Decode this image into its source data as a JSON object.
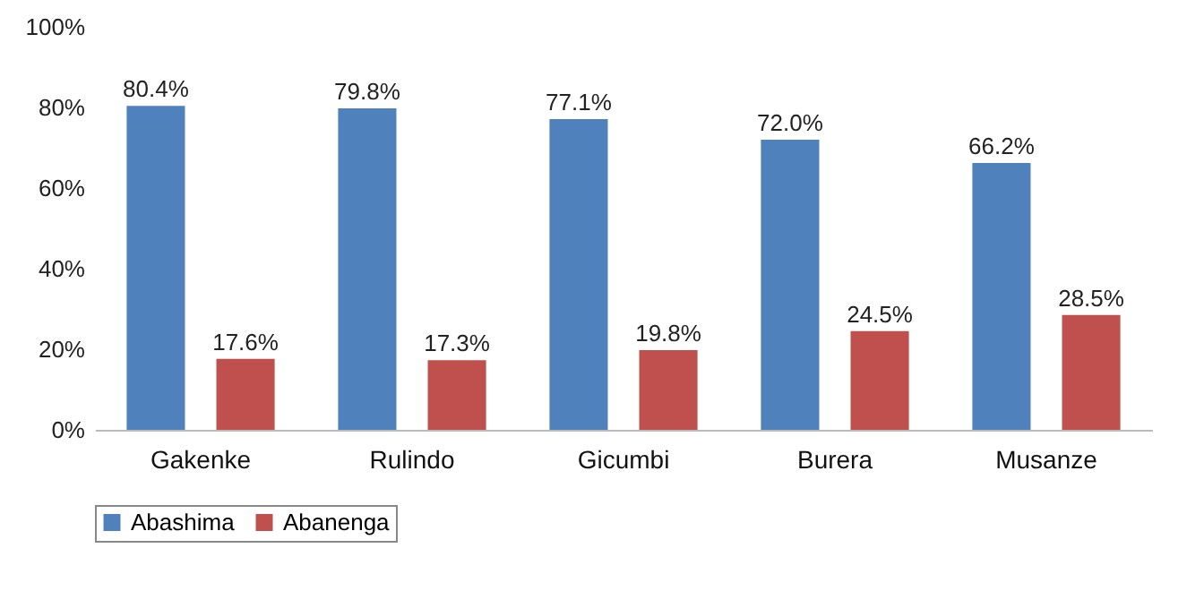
{
  "chart_data": {
    "type": "bar",
    "categories": [
      "Gakenke",
      "Rulindo",
      "Gicumbi",
      "Burera",
      "Musanze"
    ],
    "series": [
      {
        "name": "Abashima",
        "color": "#4f81bd",
        "values": [
          80.4,
          79.8,
          77.1,
          72.0,
          66.2
        ],
        "value_labels": [
          "80.4%",
          "79.8%",
          "77.1%",
          "72.0%",
          "66.2%"
        ]
      },
      {
        "name": "Abanenga",
        "color": "#c0504d",
        "values": [
          17.6,
          17.3,
          19.8,
          24.5,
          28.5
        ],
        "value_labels": [
          "17.6%",
          "17.3%",
          "19.8%",
          "24.5%",
          "28.5%"
        ]
      }
    ],
    "ylim": [
      0,
      100
    ],
    "yticks": [
      {
        "value": 0,
        "label": "0%"
      },
      {
        "value": 20,
        "label": "20%"
      },
      {
        "value": 40,
        "label": "40%"
      },
      {
        "value": 60,
        "label": "60%"
      },
      {
        "value": 80,
        "label": "80%"
      },
      {
        "value": 100,
        "label": "100%"
      }
    ],
    "grid": false,
    "legend": "bottom"
  }
}
